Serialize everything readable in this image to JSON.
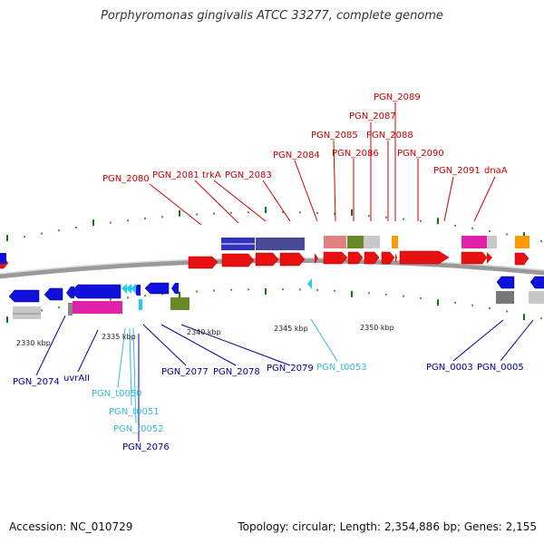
{
  "title": "Porphyromonas gingivalis ATCC 33277, complete genome",
  "footer": {
    "accession": "Accession: NC_010729",
    "summary": "Topology: circular; Length: 2,354,886 bp; Genes: 2,155"
  },
  "colors": {
    "forward_label": "#cc0000",
    "reverse_label": "#000099",
    "rna_label": "#33bbdd",
    "forward_gene": "#ee1111",
    "reverse_gene": "#1111dd",
    "rna_gene": "#22ccee",
    "tick": "#117711",
    "backbone": "#888888"
  },
  "axis_labels": [
    "2330 kbp",
    "2335 kbp",
    "2340 kbp",
    "2345 kbp",
    "2350 kbp"
  ],
  "forward_labels": [
    "PGN_2080",
    "PGN_2081",
    "trkA",
    "PGN_2083",
    "PGN_2084",
    "PGN_2085",
    "PGN_2086",
    "PGN_2087",
    "PGN_2088",
    "PGN_2089",
    "PGN_2090",
    "PGN_2091",
    "dnaA"
  ],
  "reverse_labels": [
    "PGN_2074",
    "uvrAII",
    "PGN_2077",
    "PGN_2078",
    "PGN_2079",
    "PGN_0003",
    "PGN_0005",
    "PGN_2076"
  ],
  "rna_labels": [
    "PGN_t0050",
    "PGN_t0051",
    "PGN_t0052",
    "PGN_t0053"
  ]
}
